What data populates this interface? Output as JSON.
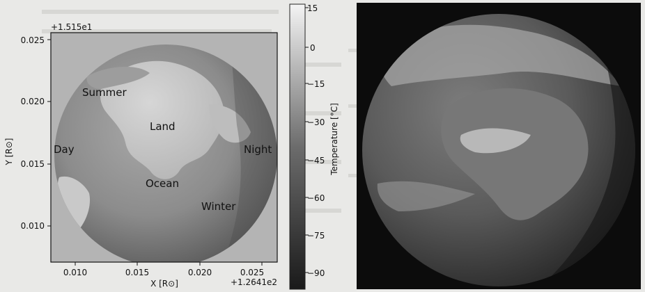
{
  "left_plot": {
    "x_offset_label": "+1.2641e2",
    "y_offset_label": "+1.515e1",
    "xlabel": "X [R⊙]",
    "ylabel": "Y [R⊙]",
    "x_ticks": [
      "0.010",
      "0.015",
      "0.020",
      "0.025"
    ],
    "y_ticks": [
      "0.010",
      "0.015",
      "0.020",
      "0.025"
    ],
    "annotations": {
      "summer": "Summer",
      "land": "Land",
      "day": "Day",
      "night": "Night",
      "ocean": "Ocean",
      "winter": "Winter"
    }
  },
  "colorbar": {
    "label": "Temperature [°C]",
    "ticks": [
      "15",
      "0",
      "−15",
      "−30",
      "−45",
      "−60",
      "−75",
      "−90"
    ]
  },
  "colors": {
    "page_background": "#e9e9e7",
    "photo_background": "#0c0c0c"
  }
}
